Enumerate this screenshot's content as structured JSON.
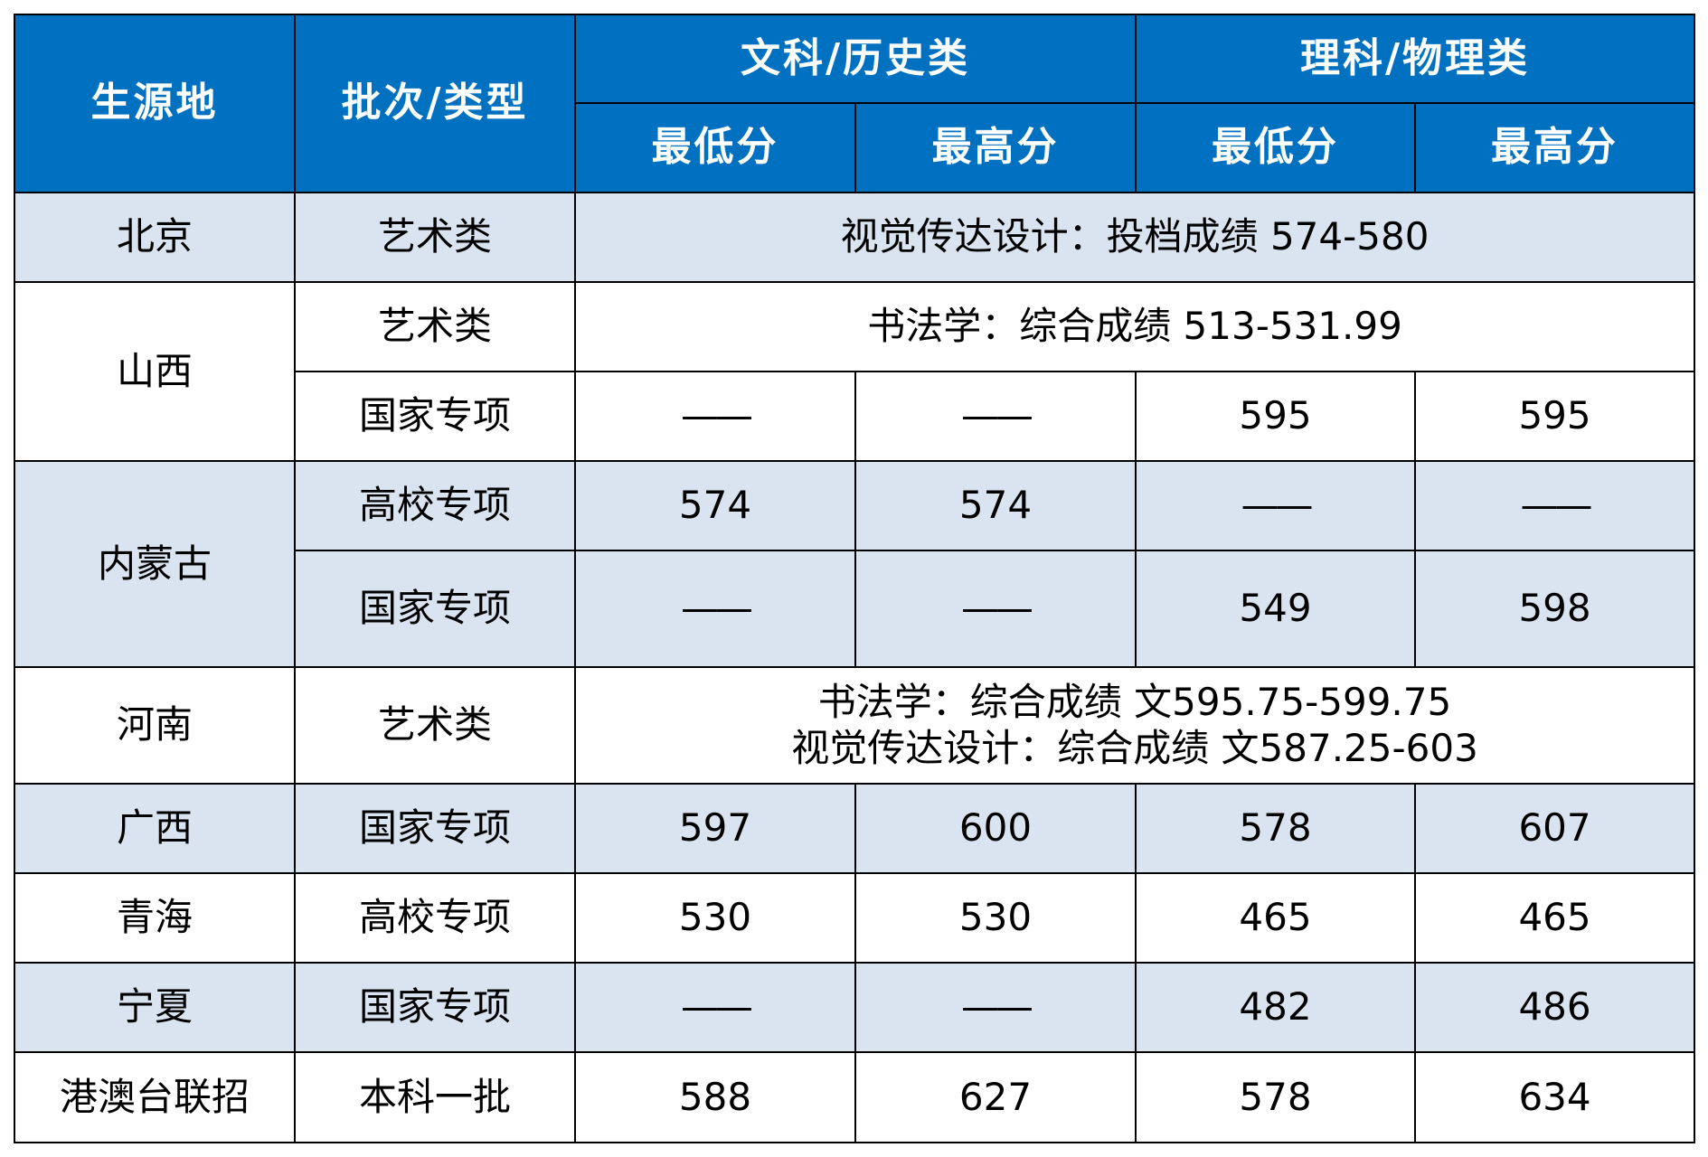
{
  "header": {
    "origin": "生源地",
    "batch": "批次/类型",
    "liberal": "文科/历史类",
    "science": "理科/物理类",
    "min": "最低分",
    "max": "最高分"
  },
  "rows": {
    "beijing": {
      "origin": "北京",
      "batch": "艺术类",
      "note": "视觉传达设计：投档成绩 574-580"
    },
    "shanxi": {
      "origin": "山西",
      "art_batch": "艺术类",
      "art_note": "书法学：综合成绩 513-531.99",
      "special_batch": "国家专项",
      "special_scores": [
        "——",
        "——",
        "595",
        "595"
      ]
    },
    "neimenggu": {
      "origin": "内蒙古",
      "college_batch": "高校专项",
      "college_scores": [
        "574",
        "574",
        "——",
        "——"
      ],
      "national_batch": "国家专项",
      "national_scores": [
        "——",
        "——",
        "549",
        "598"
      ]
    },
    "henan": {
      "origin": "河南",
      "batch": "艺术类",
      "note_line1": "书法学：综合成绩 文595.75-599.75",
      "note_line2": "视觉传达设计：综合成绩 文587.25-603"
    },
    "guangxi": {
      "origin": "广西",
      "batch": "国家专项",
      "scores": [
        "597",
        "600",
        "578",
        "607"
      ]
    },
    "qinghai": {
      "origin": "青海",
      "batch": "高校专项",
      "scores": [
        "530",
        "530",
        "465",
        "465"
      ]
    },
    "ningxia": {
      "origin": "宁夏",
      "batch": "国家专项",
      "scores": [
        "——",
        "——",
        "482",
        "486"
      ]
    },
    "gangaotai": {
      "origin": "港澳台联招",
      "batch": "本科一批",
      "scores": [
        "588",
        "627",
        "578",
        "634"
      ]
    }
  },
  "colors": {
    "header_bg": "#0070c0",
    "header_text": "#ffffff",
    "shade_bg": "#dae3f0",
    "border": "#000000"
  }
}
